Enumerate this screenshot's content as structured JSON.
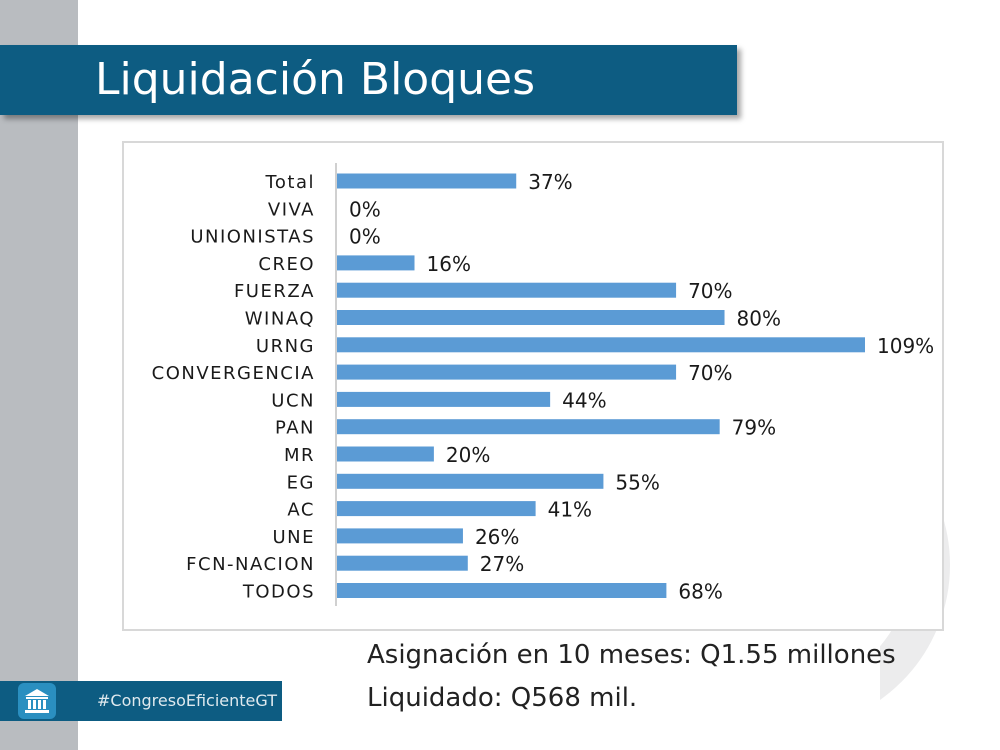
{
  "slide": {
    "title": "Liquidación Bloques",
    "notes": [
      "Asignación en 10 meses: Q1.55 millones",
      "Liquidado: Q568 mil."
    ],
    "hashtag": "#CongresoEficienteGT",
    "icon": "congress-building-icon",
    "colors": {
      "brand": "#0d5c82",
      "bar": "#5b9bd5",
      "strip": "#b9bcc0"
    }
  },
  "chart_data": {
    "type": "bar",
    "orientation": "horizontal",
    "categories": [
      "Total",
      "VIVA",
      "UNIONISTAS",
      "CREO",
      "FUERZA",
      "WINAQ",
      "URNG",
      "CONVERGENCIA",
      "UCN",
      "PAN",
      "MR",
      "EG",
      "AC",
      "UNE",
      "FCN-NACION",
      "TODOS"
    ],
    "values": [
      37,
      0,
      0,
      16,
      70,
      80,
      109,
      70,
      44,
      79,
      20,
      55,
      41,
      26,
      27,
      68
    ],
    "value_suffix": "%",
    "xlim": [
      0,
      109
    ],
    "grid": false,
    "legend": "none"
  }
}
